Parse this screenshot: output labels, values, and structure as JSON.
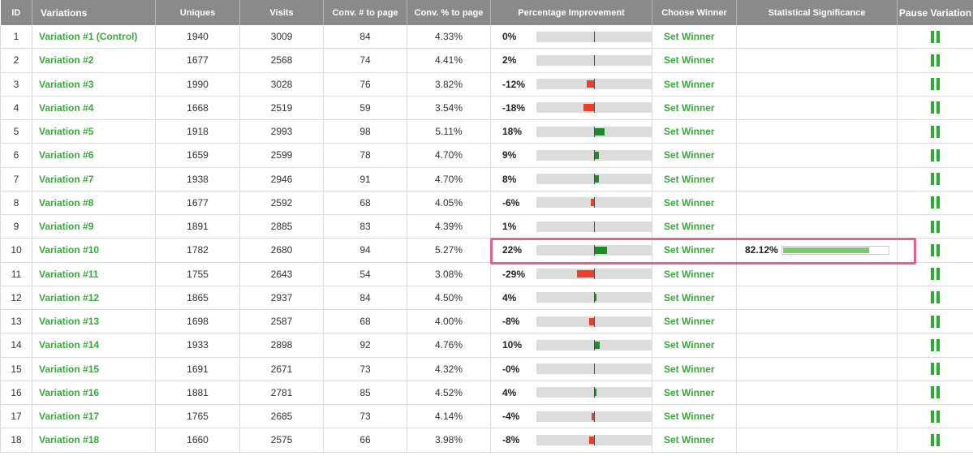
{
  "columns": {
    "id": "ID",
    "variations": "Variations",
    "uniques": "Uniques",
    "visits": "Visits",
    "conv_num": "Conv. # to page",
    "conv_pct": "Conv. % to page",
    "improvement": "Percentage Improvement",
    "winner": "Choose Winner",
    "significance": "Statistical Significance",
    "pause": "Pause Variation"
  },
  "colors": {
    "header_bg": "#8a8a8a",
    "link_green": "#3aa83c",
    "positive_bar": "#1f8a2a",
    "negative_bar": "#e8402a",
    "significance_fill": "#7cc86e",
    "highlight_border": "#e8608a"
  },
  "rows": [
    {
      "id": "1",
      "name": "Variation #1 (Control)",
      "uniques": "1940",
      "visits": "3009",
      "conv_num": "84",
      "conv_pct": "4.33%",
      "improvement": "0%",
      "imp_value": 0,
      "winner": "Set Winner",
      "significance": "",
      "sig_value": null,
      "pause_icon": "pause-icon"
    },
    {
      "id": "2",
      "name": "Variation #2",
      "uniques": "1677",
      "visits": "2568",
      "conv_num": "74",
      "conv_pct": "4.41%",
      "improvement": "2%",
      "imp_value": 2,
      "winner": "Set Winner",
      "significance": "",
      "sig_value": null,
      "pause_icon": "pause-icon"
    },
    {
      "id": "3",
      "name": "Variation #3",
      "uniques": "1990",
      "visits": "3028",
      "conv_num": "76",
      "conv_pct": "3.82%",
      "improvement": "-12%",
      "imp_value": -12,
      "winner": "Set Winner",
      "significance": "",
      "sig_value": null,
      "pause_icon": "pause-icon"
    },
    {
      "id": "4",
      "name": "Variation #4",
      "uniques": "1668",
      "visits": "2519",
      "conv_num": "59",
      "conv_pct": "3.54%",
      "improvement": "-18%",
      "imp_value": -18,
      "winner": "Set Winner",
      "significance": "",
      "sig_value": null,
      "pause_icon": "pause-icon"
    },
    {
      "id": "5",
      "name": "Variation #5",
      "uniques": "1918",
      "visits": "2993",
      "conv_num": "98",
      "conv_pct": "5.11%",
      "improvement": "18%",
      "imp_value": 18,
      "winner": "Set Winner",
      "significance": "",
      "sig_value": null,
      "pause_icon": "pause-icon"
    },
    {
      "id": "6",
      "name": "Variation #6",
      "uniques": "1659",
      "visits": "2599",
      "conv_num": "78",
      "conv_pct": "4.70%",
      "improvement": "9%",
      "imp_value": 9,
      "winner": "Set Winner",
      "significance": "",
      "sig_value": null,
      "pause_icon": "pause-icon"
    },
    {
      "id": "7",
      "name": "Variation #7",
      "uniques": "1938",
      "visits": "2946",
      "conv_num": "91",
      "conv_pct": "4.70%",
      "improvement": "8%",
      "imp_value": 8,
      "winner": "Set Winner",
      "significance": "",
      "sig_value": null,
      "pause_icon": "pause-icon"
    },
    {
      "id": "8",
      "name": "Variation #8",
      "uniques": "1677",
      "visits": "2592",
      "conv_num": "68",
      "conv_pct": "4.05%",
      "improvement": "-6%",
      "imp_value": -6,
      "winner": "Set Winner",
      "significance": "",
      "sig_value": null,
      "pause_icon": "pause-icon"
    },
    {
      "id": "9",
      "name": "Variation #9",
      "uniques": "1891",
      "visits": "2885",
      "conv_num": "83",
      "conv_pct": "4.39%",
      "improvement": "1%",
      "imp_value": 1,
      "winner": "Set Winner",
      "significance": "",
      "sig_value": null,
      "pause_icon": "pause-icon"
    },
    {
      "id": "10",
      "name": "Variation #10",
      "uniques": "1782",
      "visits": "2680",
      "conv_num": "94",
      "conv_pct": "5.27%",
      "improvement": "22%",
      "imp_value": 22,
      "winner": "Set Winner",
      "significance": "82.12%",
      "sig_value": 82.12,
      "pause_icon": "pause-icon"
    },
    {
      "id": "11",
      "name": "Variation #11",
      "uniques": "1755",
      "visits": "2643",
      "conv_num": "54",
      "conv_pct": "3.08%",
      "improvement": "-29%",
      "imp_value": -29,
      "winner": "Set Winner",
      "significance": "",
      "sig_value": null,
      "pause_icon": "pause-icon"
    },
    {
      "id": "12",
      "name": "Variation #12",
      "uniques": "1865",
      "visits": "2937",
      "conv_num": "84",
      "conv_pct": "4.50%",
      "improvement": "4%",
      "imp_value": 4,
      "winner": "Set Winner",
      "significance": "",
      "sig_value": null,
      "pause_icon": "pause-icon"
    },
    {
      "id": "13",
      "name": "Variation #13",
      "uniques": "1698",
      "visits": "2587",
      "conv_num": "68",
      "conv_pct": "4.00%",
      "improvement": "-8%",
      "imp_value": -8,
      "winner": "Set Winner",
      "significance": "",
      "sig_value": null,
      "pause_icon": "pause-icon"
    },
    {
      "id": "14",
      "name": "Variation #14",
      "uniques": "1933",
      "visits": "2898",
      "conv_num": "92",
      "conv_pct": "4.76%",
      "improvement": "10%",
      "imp_value": 10,
      "winner": "Set Winner",
      "significance": "",
      "sig_value": null,
      "pause_icon": "pause-icon"
    },
    {
      "id": "15",
      "name": "Variation #15",
      "uniques": "1691",
      "visits": "2671",
      "conv_num": "73",
      "conv_pct": "4.32%",
      "improvement": "-0%",
      "imp_value": 0,
      "winner": "Set Winner",
      "significance": "",
      "sig_value": null,
      "pause_icon": "pause-icon"
    },
    {
      "id": "16",
      "name": "Variation #16",
      "uniques": "1881",
      "visits": "2781",
      "conv_num": "85",
      "conv_pct": "4.52%",
      "improvement": "4%",
      "imp_value": 4,
      "winner": "Set Winner",
      "significance": "",
      "sig_value": null,
      "pause_icon": "pause-icon"
    },
    {
      "id": "17",
      "name": "Variation #17",
      "uniques": "1765",
      "visits": "2685",
      "conv_num": "73",
      "conv_pct": "4.14%",
      "improvement": "-4%",
      "imp_value": -4,
      "winner": "Set Winner",
      "significance": "",
      "sig_value": null,
      "pause_icon": "pause-icon"
    },
    {
      "id": "18",
      "name": "Variation #18",
      "uniques": "1660",
      "visits": "2575",
      "conv_num": "66",
      "conv_pct": "3.98%",
      "improvement": "-8%",
      "imp_value": -8,
      "winner": "Set Winner",
      "significance": "",
      "sig_value": null,
      "pause_icon": "pause-icon"
    }
  ]
}
